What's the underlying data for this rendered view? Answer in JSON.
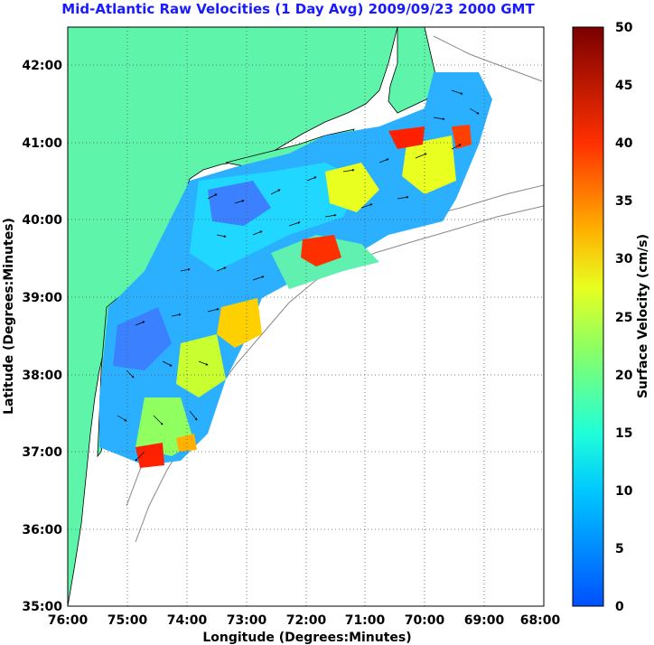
{
  "title": "Mid-Atlantic Raw Velocities (1 Day Avg) 2009/09/23 2000 GMT",
  "map": {
    "xlabel": "Longitude (Degrees:Minutes)",
    "ylabel": "Latitude (Degrees:Minutes)",
    "lon_range": [
      -76,
      -68
    ],
    "lat_range": [
      35,
      42.5
    ],
    "lon_ticks": [
      "76:00",
      "75:00",
      "74:00",
      "73:00",
      "72:00",
      "71:00",
      "70:00",
      "69:00",
      "68:00"
    ],
    "lat_ticks": [
      "35:00",
      "36:00",
      "37:00",
      "38:00",
      "39:00",
      "40:00",
      "41:00",
      "42:00"
    ],
    "land_color": "#5ef5aa",
    "grid": "dotted"
  },
  "colorbar": {
    "label": "Surface Velocity (cm/s)",
    "ticks": [
      "0",
      "5",
      "10",
      "15",
      "20",
      "25",
      "30",
      "35",
      "40",
      "45",
      "50"
    ],
    "range": [
      0,
      50
    ]
  }
}
